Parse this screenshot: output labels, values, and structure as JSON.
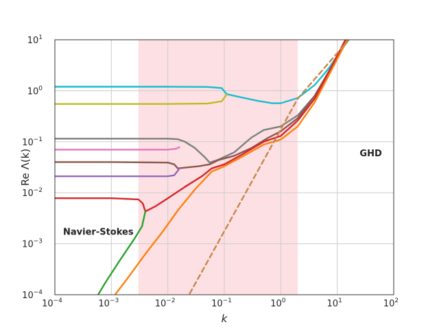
{
  "chart_data": {
    "type": "line",
    "title": "",
    "xlabel": "k",
    "ylabel": "Re Λ(k)",
    "xscale": "log",
    "yscale": "log",
    "xlim": [
      0.0001,
      100
    ],
    "ylim": [
      0.0001,
      10
    ],
    "grid": true,
    "x_ticks": [
      {
        "base": "10",
        "exp": "−4",
        "value": 0.0001
      },
      {
        "base": "10",
        "exp": "−3",
        "value": 0.001
      },
      {
        "base": "10",
        "exp": "−2",
        "value": 0.01
      },
      {
        "base": "10",
        "exp": "−1",
        "value": 0.1
      },
      {
        "base": "10",
        "exp": "0",
        "value": 1
      },
      {
        "base": "10",
        "exp": "1",
        "value": 10
      },
      {
        "base": "10",
        "exp": "2",
        "value": 100
      }
    ],
    "y_ticks": [
      {
        "base": "10",
        "exp": "−4",
        "value": 0.0001
      },
      {
        "base": "10",
        "exp": "−3",
        "value": 0.001
      },
      {
        "base": "10",
        "exp": "−2",
        "value": 0.01
      },
      {
        "base": "10",
        "exp": "−1",
        "value": 0.1
      },
      {
        "base": "10",
        "exp": "0",
        "value": 1
      },
      {
        "base": "10",
        "exp": "1",
        "value": 10
      }
    ],
    "shaded_region": {
      "x": [
        0.003,
        2
      ],
      "color": "#fde0e3"
    },
    "annotations": [
      {
        "text": "Navier-Stokes",
        "x": 0.00014,
        "y": 0.0015
      },
      {
        "text": "GHD",
        "x": 25,
        "y": 0.052
      }
    ],
    "series": [
      {
        "color": "#17becf",
        "style": "solid",
        "points": [
          [
            0.0001,
            1.2
          ],
          [
            0.001,
            1.2
          ],
          [
            0.01,
            1.2
          ],
          [
            0.05,
            1.19
          ],
          [
            0.09,
            1.13
          ],
          [
            0.11,
            0.86
          ],
          [
            0.2,
            0.74
          ],
          [
            0.4,
            0.63
          ],
          [
            0.7,
            0.57
          ],
          [
            1,
            0.57
          ],
          [
            2,
            0.72
          ],
          [
            4,
            1.3
          ],
          [
            7,
            2.7
          ],
          [
            12,
            6.5
          ],
          [
            16,
            10
          ]
        ]
      },
      {
        "color": "#bcbd22",
        "style": "solid",
        "points": [
          [
            0.0001,
            0.55
          ],
          [
            0.001,
            0.55
          ],
          [
            0.01,
            0.55
          ],
          [
            0.05,
            0.56
          ],
          [
            0.09,
            0.62
          ],
          [
            0.11,
            0.84
          ]
        ]
      },
      {
        "color": "#7f7f7f",
        "style": "solid",
        "points": [
          [
            0.0001,
            0.115
          ],
          [
            0.001,
            0.115
          ],
          [
            0.01,
            0.115
          ],
          [
            0.015,
            0.112
          ],
          [
            0.02,
            0.1
          ],
          [
            0.03,
            0.076
          ],
          [
            0.045,
            0.05
          ],
          [
            0.055,
            0.039
          ],
          [
            0.08,
            0.045
          ],
          [
            0.15,
            0.062
          ],
          [
            0.3,
            0.12
          ],
          [
            0.5,
            0.17
          ],
          [
            1,
            0.2
          ],
          [
            2,
            0.33
          ],
          [
            4,
            0.8
          ],
          [
            8,
            3
          ],
          [
            14,
            10
          ]
        ]
      },
      {
        "color": "#e377c2",
        "style": "solid",
        "points": [
          [
            0.0001,
            0.07
          ],
          [
            0.001,
            0.07
          ],
          [
            0.01,
            0.07
          ],
          [
            0.014,
            0.073
          ],
          [
            0.016,
            0.078
          ]
        ]
      },
      {
        "color": "#8c564b",
        "style": "solid",
        "points": [
          [
            0.0001,
            0.04
          ],
          [
            0.001,
            0.04
          ],
          [
            0.01,
            0.039
          ],
          [
            0.013,
            0.036
          ],
          [
            0.015,
            0.03
          ],
          [
            0.02,
            0.031
          ],
          [
            0.035,
            0.033
          ],
          [
            0.055,
            0.036
          ],
          [
            0.08,
            0.044
          ],
          [
            0.15,
            0.053
          ],
          [
            0.3,
            0.075
          ],
          [
            0.6,
            0.12
          ],
          [
            1,
            0.16
          ],
          [
            2,
            0.29
          ],
          [
            4,
            0.8
          ],
          [
            8,
            3
          ],
          [
            14,
            10
          ]
        ]
      },
      {
        "color": "#9467bd",
        "style": "solid",
        "points": [
          [
            0.0001,
            0.021
          ],
          [
            0.001,
            0.021
          ],
          [
            0.01,
            0.021
          ],
          [
            0.013,
            0.022
          ],
          [
            0.015,
            0.027
          ],
          [
            0.016,
            0.03
          ]
        ]
      },
      {
        "color": "#d62728",
        "style": "solid",
        "points": [
          [
            0.0001,
            0.0078
          ],
          [
            0.001,
            0.0078
          ],
          [
            0.003,
            0.0074
          ],
          [
            0.0036,
            0.0062
          ],
          [
            0.004,
            0.0043
          ],
          [
            0.006,
            0.0054
          ],
          [
            0.01,
            0.0078
          ],
          [
            0.02,
            0.013
          ],
          [
            0.04,
            0.021
          ],
          [
            0.06,
            0.03
          ],
          [
            0.1,
            0.036
          ],
          [
            0.2,
            0.055
          ],
          [
            0.5,
            0.1
          ],
          [
            1,
            0.13
          ],
          [
            2,
            0.26
          ],
          [
            4,
            0.7
          ],
          [
            8,
            3
          ],
          [
            14,
            10
          ]
        ]
      },
      {
        "color": "#2ca02c",
        "style": "solid",
        "points": [
          [
            0.0004,
            5e-05
          ],
          [
            0.0008,
            0.00018
          ],
          [
            0.0015,
            0.00052
          ],
          [
            0.0025,
            0.0012
          ],
          [
            0.0035,
            0.0022
          ],
          [
            0.004,
            0.0043
          ]
        ]
      },
      {
        "color": "#ff7f0e",
        "style": "solid",
        "points": [
          [
            0.001,
            8e-05
          ],
          [
            0.002,
            0.00022
          ],
          [
            0.004,
            0.00063
          ],
          [
            0.008,
            0.0017
          ],
          [
            0.015,
            0.0045
          ],
          [
            0.03,
            0.0115
          ],
          [
            0.06,
            0.026
          ],
          [
            0.1,
            0.033
          ],
          [
            0.2,
            0.05
          ],
          [
            0.5,
            0.088
          ],
          [
            1,
            0.11
          ],
          [
            2,
            0.2
          ],
          [
            4,
            0.6
          ],
          [
            8,
            2.6
          ],
          [
            15,
            10
          ]
        ]
      },
      {
        "color": "#c8864a",
        "style": "dashed",
        "points": [
          [
            0.015,
            4e-05
          ],
          [
            0.2,
            0.007
          ],
          [
            2,
            0.7
          ],
          [
            16,
            10
          ]
        ]
      }
    ]
  }
}
